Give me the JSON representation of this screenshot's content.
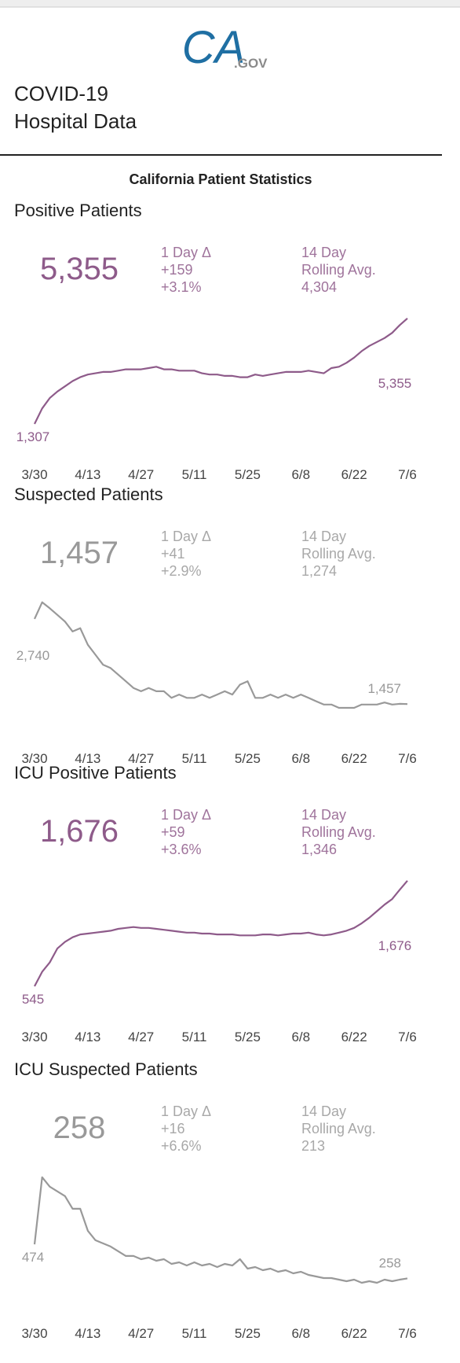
{
  "header": {
    "logo": "CA",
    "logo_suffix": ".GOV",
    "title_lines": [
      "COVID-19",
      "Hospital Data"
    ],
    "subtitle": "California Patient Statistics"
  },
  "chart_data": [
    {
      "type": "line",
      "title": "Positive Patients",
      "current": "5,355",
      "stats": [
        "1 Day Δ",
        "+159",
        "+3.1%"
      ],
      "rolling": [
        "14 Day",
        "Rolling Avg.",
        "4,304"
      ],
      "color": "#8e5b8a",
      "categories": [
        "3/30",
        null,
        null,
        null,
        null,
        null,
        null,
        "4/13",
        null,
        null,
        null,
        null,
        null,
        null,
        "4/27",
        null,
        null,
        null,
        null,
        null,
        null,
        "5/11",
        null,
        null,
        null,
        null,
        null,
        null,
        "5/25",
        null,
        null,
        null,
        null,
        null,
        null,
        "6/8",
        null,
        null,
        null,
        null,
        null,
        null,
        "6/22",
        null,
        null,
        null,
        null,
        null,
        null,
        "7/6"
      ],
      "values": [
        1307,
        1900,
        2300,
        2550,
        2750,
        2950,
        3100,
        3200,
        3250,
        3300,
        3300,
        3350,
        3400,
        3400,
        3400,
        3450,
        3500,
        3400,
        3400,
        3350,
        3350,
        3350,
        3250,
        3200,
        3200,
        3150,
        3150,
        3100,
        3100,
        3200,
        3150,
        3200,
        3250,
        3300,
        3300,
        3300,
        3350,
        3300,
        3250,
        3450,
        3500,
        3650,
        3850,
        4100,
        4300,
        4450,
        4600,
        4800,
        5100,
        5355
      ],
      "value_labels": [
        "1,307",
        null,
        null,
        null,
        null,
        null,
        null,
        null,
        null,
        null,
        null,
        null,
        null,
        null,
        null,
        null,
        null,
        null,
        null,
        null,
        null,
        null,
        null,
        null,
        null,
        null,
        null,
        null,
        null,
        null,
        null,
        null,
        null,
        null,
        null,
        null,
        null,
        null,
        null,
        null,
        null,
        null,
        null,
        null,
        null,
        null,
        null,
        null,
        null,
        "5,355"
      ]
    },
    {
      "type": "line",
      "title": "Suspected Patients",
      "current": "1,457",
      "stats": [
        "1 Day Δ",
        "+41",
        "+2.9%"
      ],
      "rolling": [
        "14 Day",
        "Rolling Avg.",
        "1,274"
      ],
      "color": "#999999",
      "categories": [
        "3/30",
        null,
        null,
        null,
        null,
        null,
        null,
        "4/13",
        null,
        null,
        null,
        null,
        null,
        null,
        "4/27",
        null,
        null,
        null,
        null,
        null,
        null,
        "5/11",
        null,
        null,
        null,
        null,
        null,
        null,
        "5/25",
        null,
        null,
        null,
        null,
        null,
        null,
        "6/8",
        null,
        null,
        null,
        null,
        null,
        null,
        "6/22",
        null,
        null,
        null,
        null,
        null,
        null,
        "7/6"
      ],
      "values": [
        2740,
        2990,
        2900,
        2800,
        2700,
        2550,
        2600,
        2350,
        2200,
        2050,
        2000,
        1900,
        1800,
        1700,
        1650,
        1700,
        1650,
        1650,
        1550,
        1600,
        1550,
        1550,
        1600,
        1550,
        1600,
        1650,
        1600,
        1750,
        1800,
        1550,
        1550,
        1600,
        1550,
        1600,
        1550,
        1600,
        1550,
        1500,
        1450,
        1450,
        1400,
        1400,
        1400,
        1450,
        1450,
        1450,
        1480,
        1450,
        1460,
        1457
      ],
      "value_labels": [
        "2,740",
        null,
        null,
        null,
        null,
        null,
        null,
        null,
        null,
        null,
        null,
        null,
        null,
        null,
        null,
        null,
        null,
        null,
        null,
        null,
        null,
        null,
        null,
        null,
        null,
        null,
        null,
        null,
        null,
        null,
        null,
        null,
        null,
        null,
        null,
        null,
        null,
        null,
        null,
        null,
        null,
        null,
        null,
        null,
        null,
        null,
        null,
        null,
        null,
        "1,457"
      ]
    },
    {
      "type": "line",
      "title": "ICU Positive Patients",
      "current": "1,676",
      "stats": [
        "1 Day Δ",
        "+59",
        "+3.6%"
      ],
      "rolling": [
        "14 Day",
        "Rolling Avg.",
        "1,346"
      ],
      "color": "#8e5b8a",
      "categories": [
        "3/30",
        null,
        null,
        null,
        null,
        null,
        null,
        "4/13",
        null,
        null,
        null,
        null,
        null,
        null,
        "4/27",
        null,
        null,
        null,
        null,
        null,
        null,
        "5/11",
        null,
        null,
        null,
        null,
        null,
        null,
        "5/25",
        null,
        null,
        null,
        null,
        null,
        null,
        "6/8",
        null,
        null,
        null,
        null,
        null,
        null,
        "6/22",
        null,
        null,
        null,
        null,
        null,
        null,
        "7/6"
      ],
      "values": [
        545,
        700,
        800,
        950,
        1020,
        1070,
        1100,
        1110,
        1120,
        1130,
        1140,
        1160,
        1170,
        1180,
        1170,
        1170,
        1160,
        1150,
        1140,
        1130,
        1120,
        1120,
        1110,
        1110,
        1100,
        1100,
        1100,
        1090,
        1090,
        1090,
        1100,
        1100,
        1090,
        1100,
        1110,
        1110,
        1120,
        1100,
        1090,
        1100,
        1120,
        1140,
        1170,
        1220,
        1280,
        1350,
        1420,
        1480,
        1580,
        1676
      ],
      "value_labels": [
        "545",
        null,
        null,
        null,
        null,
        null,
        null,
        null,
        null,
        null,
        null,
        null,
        null,
        null,
        null,
        null,
        null,
        null,
        null,
        null,
        null,
        null,
        null,
        null,
        null,
        null,
        null,
        null,
        null,
        null,
        null,
        null,
        null,
        null,
        null,
        null,
        null,
        null,
        null,
        null,
        null,
        null,
        null,
        null,
        null,
        null,
        null,
        null,
        null,
        "1,676"
      ]
    },
    {
      "type": "line",
      "title": "ICU Suspected Patients",
      "current": "258",
      "stats": [
        "1 Day Δ",
        "+16",
        "+6.6%"
      ],
      "rolling": [
        "14 Day",
        "Rolling Avg.",
        "213"
      ],
      "color": "#999999",
      "categories": [
        "3/30",
        null,
        null,
        null,
        null,
        null,
        null,
        "4/13",
        null,
        null,
        null,
        null,
        null,
        null,
        "4/27",
        null,
        null,
        null,
        null,
        null,
        null,
        "5/11",
        null,
        null,
        null,
        null,
        null,
        null,
        "5/25",
        null,
        null,
        null,
        null,
        null,
        null,
        "6/8",
        null,
        null,
        null,
        null,
        null,
        null,
        "6/22",
        null,
        null,
        null,
        null,
        null,
        null,
        "7/6"
      ],
      "values": [
        474,
        900,
        840,
        810,
        780,
        700,
        700,
        560,
        500,
        480,
        460,
        430,
        400,
        400,
        380,
        390,
        370,
        380,
        350,
        360,
        340,
        360,
        340,
        350,
        330,
        350,
        340,
        380,
        320,
        330,
        310,
        320,
        300,
        310,
        290,
        300,
        280,
        270,
        260,
        260,
        250,
        240,
        250,
        230,
        240,
        230,
        250,
        240,
        250,
        258
      ],
      "value_labels": [
        "474",
        null,
        null,
        null,
        null,
        null,
        null,
        null,
        null,
        null,
        null,
        null,
        null,
        null,
        null,
        null,
        null,
        null,
        null,
        null,
        null,
        null,
        null,
        null,
        null,
        null,
        null,
        null,
        null,
        null,
        null,
        null,
        null,
        null,
        null,
        null,
        null,
        null,
        null,
        null,
        null,
        null,
        null,
        null,
        null,
        null,
        null,
        null,
        null,
        "258"
      ]
    }
  ]
}
